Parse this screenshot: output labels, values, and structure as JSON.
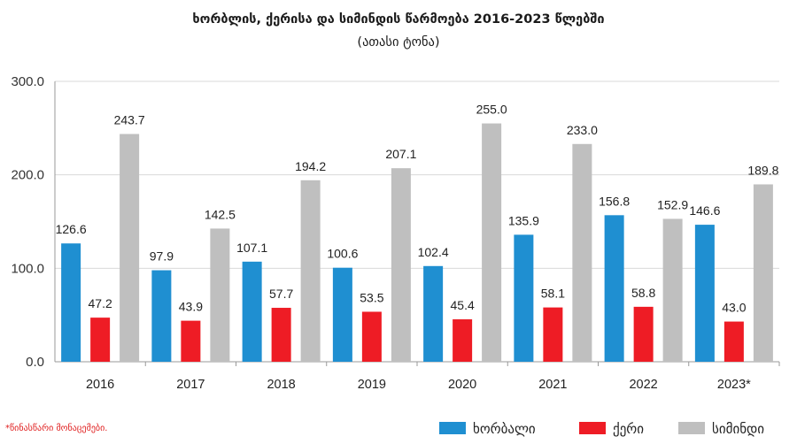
{
  "chart_data": {
    "type": "bar",
    "title": "ხორბლის, ქერისა და სიმინდის წარმოება 2016-2023 წლებში",
    "subtitle": "(ათასი ტონა)",
    "categories": [
      "2016",
      "2017",
      "2018",
      "2019",
      "2020",
      "2021",
      "2022",
      "2023*"
    ],
    "series": [
      {
        "name": "ხორბალი",
        "color": "#1f8fd1",
        "values": [
          126.6,
          97.9,
          107.1,
          100.6,
          102.4,
          135.9,
          156.8,
          146.6
        ]
      },
      {
        "name": "ქერი",
        "color": "#ee1c25",
        "values": [
          47.2,
          43.9,
          57.7,
          53.5,
          45.4,
          58.1,
          58.8,
          43.0
        ]
      },
      {
        "name": "სიმინდი",
        "color": "#bfbfbf",
        "values": [
          243.7,
          142.5,
          194.2,
          207.1,
          255.0,
          233.0,
          152.9,
          189.8
        ]
      }
    ],
    "ylim": [
      0,
      300
    ],
    "yticks": [
      "0.0",
      "100.0",
      "200.0",
      "300.0"
    ],
    "grid": true,
    "legend": "bottom-right",
    "footnote": "*წინასწარი მონაცემები."
  }
}
